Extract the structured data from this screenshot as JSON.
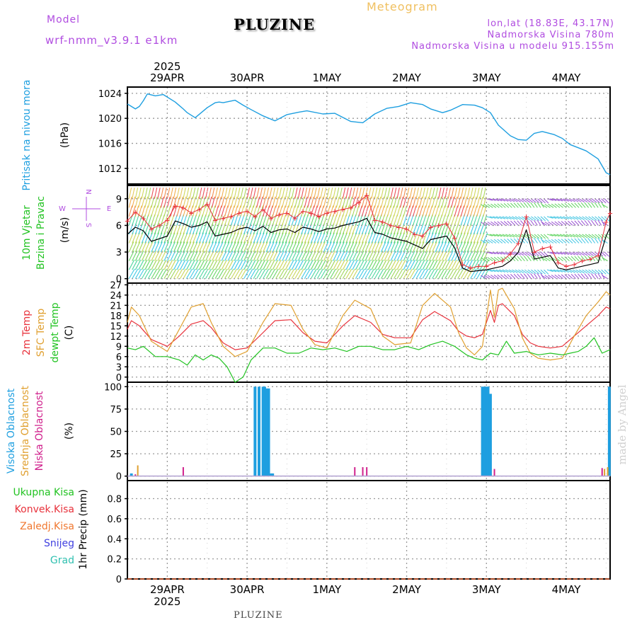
{
  "header": {
    "model_label": "Model",
    "model_name": "wrf-nmm_v3.9.1  e1km",
    "title": "PLUZINE",
    "subtitle": "Meteogram",
    "coords": "lon,lat (18.83E, 43.17N)",
    "elevation": "Nadmorska Visina 780m",
    "model_elevation": "Nadmorska Visina u modelu 915.155m",
    "footer_title": "PLUZINE",
    "watermark": "made by Angel"
  },
  "colors": {
    "pressure": "#1e9fe0",
    "wind_speed": "#000000",
    "gust": "#e8323c",
    "temp_2m": "#e8323c",
    "temp_sfc": "#e0a030",
    "temp_dew": "#22c322",
    "cloud_high": "#1e9fe0",
    "cloud_mid": "#e0a030",
    "cloud_low": "#d0208c",
    "grid": "#9a9a9a"
  },
  "chart_data": {
    "type": "meteogram",
    "time_axis": {
      "top_year": "2025",
      "bottom_year": "2025",
      "days": [
        "29APR",
        "30APR",
        "1MAY",
        "2MAY",
        "3MAY",
        "4MAY"
      ],
      "day_index": [
        0.5,
        1.5,
        2.5,
        3.5,
        4.5,
        5.5
      ],
      "range_days": [
        0,
        6.05
      ]
    },
    "panels": [
      {
        "id": "pressure",
        "label": "Pritisak na nivou mora",
        "unit": "(hPa)",
        "yticks": [
          1012,
          1016,
          1020,
          1024
        ],
        "ylim": [
          1009.5,
          1025
        ],
        "series": {
          "t": [
            0,
            0.1,
            0.15,
            0.2,
            0.25,
            0.35,
            0.45,
            0.6,
            0.7,
            0.75,
            0.85,
            1.0,
            1.1,
            1.15,
            1.2,
            1.35,
            1.45,
            1.55,
            1.7,
            1.85,
            2.0,
            2.15,
            2.25,
            2.45,
            2.6,
            2.8,
            2.95,
            3.1,
            3.25,
            3.4,
            3.55,
            3.7,
            3.8,
            3.95,
            4.05,
            4.2,
            4.35,
            4.45,
            4.55,
            4.65,
            4.8,
            4.9,
            5.0,
            5.1,
            5.2,
            5.35,
            5.45,
            5.55,
            5.65,
            5.75,
            5.9,
            6.0,
            6.05
          ],
          "values": [
            1022.3,
            1021.5,
            1021.9,
            1022.8,
            1023.9,
            1023.6,
            1023.8,
            1022.6,
            1021.5,
            1020.9,
            1020.1,
            1021.7,
            1022.5,
            1022.6,
            1022.5,
            1022.9,
            1022.1,
            1021.4,
            1020.4,
            1019.6,
            1020.6,
            1021.0,
            1021.2,
            1020.7,
            1020.8,
            1019.5,
            1019.3,
            1020.7,
            1021.6,
            1021.9,
            1022.5,
            1022.2,
            1021.5,
            1020.9,
            1021.3,
            1022.2,
            1022.1,
            1021.7,
            1020.9,
            1018.9,
            1017.2,
            1016.6,
            1016.5,
            1017.6,
            1017.9,
            1017.4,
            1016.8,
            1015.8,
            1015.3,
            1014.8,
            1013.5,
            1011.3,
            1011.0
          ]
        }
      },
      {
        "id": "wind",
        "label_line1": "10m Vjetar",
        "label_line2": "Brzina i Pravac",
        "unit": "(m/s)",
        "compass": {
          "n": "N",
          "s": "S",
          "w": "W",
          "e": "E"
        },
        "yticks": [
          0,
          3,
          6,
          9
        ],
        "ylim": [
          -0.5,
          10.5
        ],
        "speed": {
          "t": [
            0,
            0.1,
            0.2,
            0.3,
            0.4,
            0.5,
            0.6,
            0.7,
            0.8,
            0.9,
            1.0,
            1.1,
            1.2,
            1.3,
            1.4,
            1.5,
            1.6,
            1.7,
            1.8,
            1.9,
            2.0,
            2.1,
            2.2,
            2.3,
            2.4,
            2.5,
            2.6,
            2.7,
            2.8,
            2.9,
            3.0,
            3.1,
            3.2,
            3.3,
            3.4,
            3.5,
            3.6,
            3.7,
            3.8,
            3.9,
            4.0,
            4.1,
            4.2,
            4.3,
            4.4,
            4.5,
            4.6,
            4.7,
            4.8,
            4.9,
            5.0,
            5.1,
            5.2,
            5.3,
            5.4,
            5.5,
            5.6,
            5.7,
            5.8,
            5.9,
            6.0,
            6.05
          ],
          "values": [
            5.0,
            5.8,
            5.4,
            4.2,
            4.5,
            4.8,
            6.5,
            6.2,
            5.8,
            6.0,
            6.4,
            4.8,
            5.0,
            5.2,
            5.6,
            5.8,
            5.4,
            5.9,
            5.2,
            5.5,
            5.6,
            5.2,
            5.8,
            5.6,
            5.3,
            5.6,
            5.7,
            6.0,
            6.2,
            6.4,
            6.8,
            5.2,
            5.0,
            4.6,
            4.4,
            4.2,
            3.8,
            3.4,
            4.4,
            4.6,
            4.8,
            3.5,
            1.2,
            0.8,
            0.9,
            1.0,
            1.2,
            1.4,
            2.0,
            3.0,
            5.5,
            2.2,
            2.4,
            2.6,
            1.2,
            1.0,
            1.2,
            1.4,
            1.6,
            1.8,
            4.8,
            5.8
          ]
        },
        "gust": {
          "t": [
            0,
            0.1,
            0.2,
            0.3,
            0.4,
            0.5,
            0.6,
            0.7,
            0.8,
            0.9,
            1.0,
            1.1,
            1.2,
            1.3,
            1.4,
            1.5,
            1.6,
            1.7,
            1.8,
            1.9,
            2.0,
            2.1,
            2.2,
            2.3,
            2.4,
            2.5,
            2.6,
            2.7,
            2.8,
            2.9,
            3.0,
            3.1,
            3.2,
            3.3,
            3.4,
            3.5,
            3.6,
            3.7,
            3.8,
            3.9,
            4.0,
            4.1,
            4.2,
            4.3,
            4.4,
            4.5,
            4.6,
            4.7,
            4.8,
            4.9,
            5.0,
            5.1,
            5.2,
            5.3,
            5.4,
            5.5,
            5.6,
            5.7,
            5.8,
            5.9,
            6.0,
            6.05
          ],
          "values": [
            6.5,
            7.5,
            6.8,
            5.6,
            6.0,
            6.6,
            8.2,
            8.0,
            7.4,
            7.8,
            8.4,
            6.6,
            6.8,
            7.0,
            7.4,
            7.6,
            7.0,
            7.8,
            6.8,
            7.2,
            7.4,
            6.8,
            7.6,
            7.4,
            7.0,
            7.4,
            7.6,
            7.8,
            8.0,
            8.6,
            9.4,
            6.6,
            6.4,
            6.0,
            5.8,
            5.6,
            5.0,
            4.8,
            5.8,
            6.0,
            6.2,
            4.6,
            1.6,
            1.2,
            1.4,
            1.4,
            1.8,
            2.0,
            2.8,
            4.0,
            7.0,
            3.0,
            3.4,
            3.6,
            1.8,
            1.4,
            1.6,
            2.0,
            2.2,
            2.6,
            6.4,
            7.4
          ]
        },
        "gust_marker": "+"
      },
      {
        "id": "temperature",
        "label_line1": "2m Temp",
        "label_line2": "SFC Temp",
        "label_line3": "dewpt Temp",
        "unit": "(C)",
        "yticks": [
          0,
          3,
          6,
          9,
          12,
          15,
          18,
          21,
          24,
          27
        ],
        "ylim": [
          -1.5,
          27.5
        ],
        "series": [
          {
            "name": "2m Temp",
            "t": [
              0,
              0.05,
              0.15,
              0.3,
              0.5,
              0.65,
              0.8,
              0.95,
              1.05,
              1.2,
              1.35,
              1.5,
              1.7,
              1.85,
              2.05,
              2.2,
              2.35,
              2.5,
              2.7,
              2.85,
              3.05,
              3.2,
              3.35,
              3.55,
              3.7,
              3.85,
              4.05,
              4.15,
              4.25,
              4.35,
              4.45,
              4.55,
              4.6,
              4.65,
              4.7,
              4.85,
              4.95,
              5.05,
              5.15,
              5.3,
              5.45,
              5.6,
              5.75,
              5.9,
              6.0,
              6.05
            ],
            "values": [
              14,
              16.5,
              15,
              11,
              9,
              12,
              15.5,
              16.5,
              14.5,
              10,
              8,
              8.5,
              13,
              16.5,
              16.8,
              13,
              10.5,
              10,
              15,
              18,
              16,
              12.5,
              11.5,
              11.5,
              16.8,
              19.2,
              16.5,
              13.5,
              12,
              11.5,
              12.5,
              19.5,
              16.0,
              21.0,
              21.5,
              18,
              12.5,
              10,
              9,
              8.5,
              9,
              12,
              15,
              18,
              20.5,
              20
            ]
          },
          {
            "name": "SFC Temp",
            "t": [
              0,
              0.05,
              0.15,
              0.3,
              0.5,
              0.65,
              0.8,
              0.95,
              1.05,
              1.2,
              1.35,
              1.5,
              1.7,
              1.85,
              2.05,
              2.2,
              2.35,
              2.5,
              2.7,
              2.85,
              3.05,
              3.2,
              3.35,
              3.55,
              3.7,
              3.85,
              4.05,
              4.15,
              4.25,
              4.35,
              4.45,
              4.55,
              4.6,
              4.65,
              4.7,
              4.85,
              4.95,
              5.05,
              5.15,
              5.3,
              5.45,
              5.6,
              5.75,
              5.9,
              6.0,
              6.05
            ],
            "values": [
              16,
              20.5,
              18,
              10.5,
              7.5,
              14,
              20.5,
              21.5,
              16,
              9,
              6,
              7.5,
              16,
              21.5,
              21,
              14,
              9.5,
              8.5,
              18,
              22.5,
              20,
              12,
              9.5,
              10,
              21,
              24.5,
              20.5,
              13,
              8.5,
              6.5,
              9,
              25.5,
              17.5,
              25.5,
              26,
              20,
              11.5,
              7,
              5.5,
              5,
              5.5,
              12,
              18,
              22,
              25,
              24
            ]
          },
          {
            "name": "dewpt Temp",
            "t": [
              0,
              0.1,
              0.2,
              0.35,
              0.5,
              0.65,
              0.75,
              0.85,
              0.95,
              1.05,
              1.15,
              1.25,
              1.35,
              1.45,
              1.55,
              1.7,
              1.85,
              2.0,
              2.15,
              2.3,
              2.45,
              2.6,
              2.75,
              2.9,
              3.05,
              3.2,
              3.35,
              3.5,
              3.65,
              3.8,
              3.95,
              4.1,
              4.25,
              4.35,
              4.45,
              4.55,
              4.65,
              4.75,
              4.85,
              5.0,
              5.15,
              5.3,
              5.45,
              5.55,
              5.65,
              5.75,
              5.85,
              5.95,
              6.05
            ],
            "values": [
              8.5,
              8,
              9,
              6,
              6,
              5,
              3.5,
              6.5,
              5,
              6.5,
              5.5,
              3,
              -1.5,
              0,
              5,
              8.5,
              8.5,
              7,
              7,
              8.5,
              8,
              8.5,
              7.5,
              9,
              9,
              8,
              8,
              9,
              8,
              9.5,
              10.5,
              9,
              6.5,
              5.5,
              5,
              7,
              6.5,
              10.5,
              7,
              7.5,
              6.5,
              7,
              6.5,
              7,
              7.5,
              9,
              11.5,
              7,
              8
            ]
          }
        ]
      },
      {
        "id": "cloud",
        "label_line1": "Visoka Oblacnost",
        "label_line2": "Srednja Oblacnost",
        "label_line3": "Niska Oblacnost",
        "unit": "(%)",
        "yticks": [
          0,
          25,
          50,
          75,
          100
        ],
        "ylim": [
          -5,
          105
        ],
        "series": [
          {
            "name": "Visoka Oblacnost",
            "t": [
              0.05,
              1.6,
              1.65,
              1.7,
              1.72,
              1.75,
              1.77,
              1.8,
              1.82,
              4.45,
              4.47,
              4.5,
              4.52,
              4.55,
              6.04
            ],
            "values": [
              3,
              100,
              100,
              100,
              100,
              98,
              98,
              3,
              3,
              100,
              100,
              100,
              100,
              92,
              100
            ]
          },
          {
            "name": "Srednja Oblacnost",
            "t": [
              0.13,
              5.98,
              6.02
            ],
            "values": [
              12,
              8,
              10
            ]
          },
          {
            "name": "Niska Oblacnost",
            "t": [
              0.1,
              0.7,
              2.85,
              2.95,
              3.0,
              4.6,
              5.95
            ],
            "values": [
              2,
              10,
              10,
              10,
              10,
              8,
              9
            ]
          }
        ]
      },
      {
        "id": "precip",
        "label_line1": "Ukupna  Kisa",
        "label_line2": "Konvek.Kisa",
        "label_line3": "Zaledj.Kisa",
        "label_line4": "Snijeg",
        "label_line5": "Grad",
        "unit": "1hr Precip (mm)",
        "yticks": [
          0,
          0.2,
          0.4,
          0.6,
          0.8
        ],
        "ylim": [
          0,
          0.98
        ],
        "series": [
          {
            "name": "Ukupna  Kisa",
            "values": [
              0
            ]
          },
          {
            "name": "Konvek.Kisa",
            "values": [
              0
            ]
          },
          {
            "name": "Zaledj.Kisa",
            "values": [
              0
            ]
          },
          {
            "name": "Snijeg",
            "values": [
              0
            ]
          },
          {
            "name": "Grad",
            "values": [
              0
            ]
          }
        ]
      }
    ]
  }
}
